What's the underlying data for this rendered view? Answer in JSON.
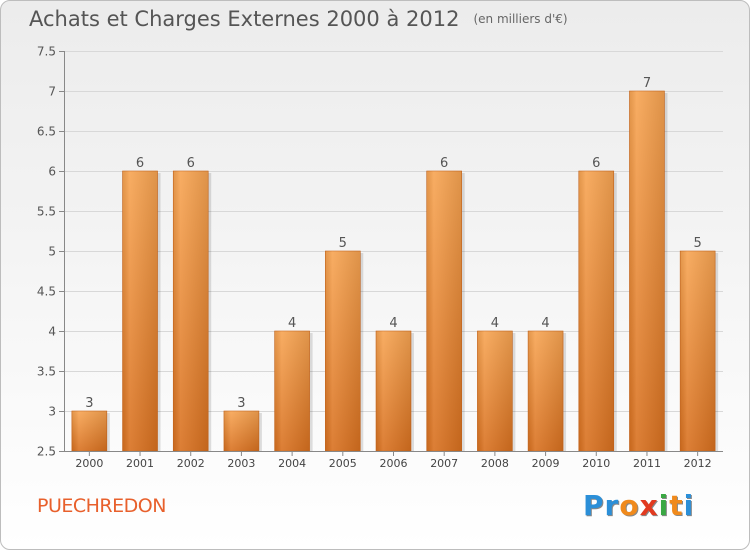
{
  "title": "Achats et Charges Externes 2000 à 2012",
  "subtitle": "(en milliers d'€)",
  "commune": "PUECHREDON",
  "logo": {
    "text": "Proxiti",
    "letters": [
      "P",
      "r",
      "o",
      "x",
      "i",
      "t",
      "i"
    ],
    "colors": [
      "#2b8fd8",
      "#2b8fd8",
      "#f08a1c",
      "#e23a1f",
      "#3aa843",
      "#f08a1c",
      "#2b8fd8"
    ]
  },
  "chart_data": {
    "type": "bar",
    "categories": [
      "2000",
      "2001",
      "2002",
      "2003",
      "2004",
      "2005",
      "2006",
      "2007",
      "2008",
      "2009",
      "2010",
      "2011",
      "2012"
    ],
    "values": [
      3,
      6,
      6,
      3,
      4,
      5,
      4,
      6,
      4,
      4,
      6,
      7,
      5
    ],
    "labels": [
      "3",
      "6",
      "6",
      "3",
      "4",
      "5",
      "4",
      "6",
      "4",
      "4",
      "6",
      "7",
      "5"
    ],
    "ylim": [
      2.5,
      7.5
    ],
    "yticks": [
      2.5,
      3,
      3.5,
      4,
      4.5,
      5,
      5.5,
      6,
      6.5,
      7,
      7.5
    ],
    "ytick_labels": [
      "2.5",
      "3",
      "3.5",
      "4",
      "4.5",
      "5",
      "5.5",
      "6",
      "6.5",
      "7",
      "7.5"
    ],
    "grid": "horizontal",
    "bar_color": "#f2913a"
  }
}
